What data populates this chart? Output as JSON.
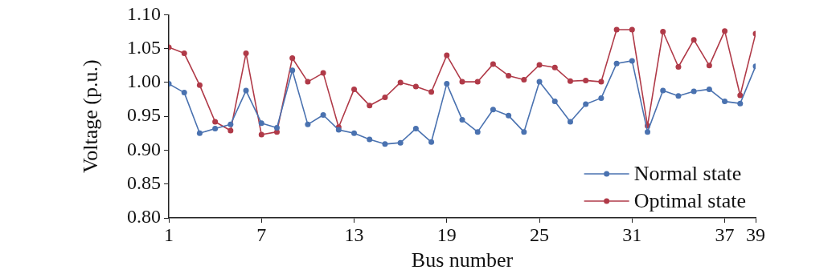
{
  "chart_data": {
    "type": "line",
    "xlabel": "Bus number",
    "ylabel": "Voltage (p.u.)",
    "x": [
      1,
      2,
      3,
      4,
      5,
      6,
      7,
      8,
      9,
      10,
      11,
      12,
      13,
      14,
      15,
      16,
      17,
      18,
      19,
      20,
      21,
      22,
      23,
      24,
      25,
      26,
      27,
      28,
      29,
      30,
      31,
      32,
      33,
      34,
      35,
      36,
      37,
      38,
      39
    ],
    "xlim": [
      1,
      39
    ],
    "xticks": [
      1,
      7,
      13,
      19,
      25,
      31,
      37,
      39
    ],
    "ylim": [
      0.8,
      1.1
    ],
    "yticks": [
      {
        "value": 0.8,
        "label": "0.80"
      },
      {
        "value": 0.85,
        "label": "0.85"
      },
      {
        "value": 0.9,
        "label": "0.90"
      },
      {
        "value": 0.95,
        "label": "0.95"
      },
      {
        "value": 1.0,
        "label": "1.00"
      },
      {
        "value": 1.05,
        "label": "1.05"
      },
      {
        "value": 1.1,
        "label": "1.10"
      }
    ],
    "marker": "circle",
    "line_style": "solid",
    "legend": "bottom right",
    "series": [
      {
        "name": "Normal state",
        "color": "#4a72b0",
        "values": [
          0.998,
          0.985,
          0.925,
          0.932,
          0.938,
          0.988,
          0.94,
          0.933,
          1.018,
          0.938,
          0.952,
          0.93,
          0.925,
          0.916,
          0.909,
          0.911,
          0.932,
          0.912,
          0.998,
          0.945,
          0.927,
          0.96,
          0.951,
          0.927,
          1.001,
          0.972,
          0.942,
          0.968,
          0.977,
          1.028,
          1.032,
          0.927,
          0.988,
          0.98,
          0.987,
          0.99,
          0.972,
          0.969,
          1.024
        ]
      },
      {
        "name": "Optimal state",
        "color": "#b03a48",
        "values": [
          1.052,
          1.043,
          0.996,
          0.942,
          0.929,
          1.043,
          0.923,
          0.927,
          1.036,
          1.001,
          1.014,
          0.934,
          0.99,
          0.966,
          0.978,
          1.0,
          0.994,
          0.986,
          1.04,
          1.001,
          1.001,
          1.027,
          1.01,
          1.004,
          1.026,
          1.022,
          1.002,
          1.003,
          1.001,
          1.078,
          1.078,
          0.936,
          1.075,
          1.023,
          1.063,
          1.025,
          1.076,
          0.981,
          1.072
        ]
      }
    ]
  }
}
